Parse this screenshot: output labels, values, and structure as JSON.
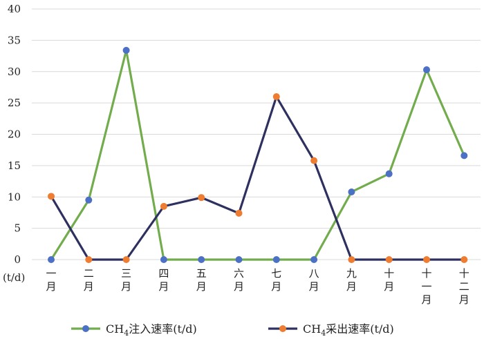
{
  "chart_data": {
    "type": "line",
    "categories": [
      "一\n月",
      "二\n月",
      "三\n月",
      "四\n月",
      "五\n月",
      "六\n月",
      "七\n月",
      "八\n月",
      "九\n月",
      "十\n月",
      "十\n一\n月",
      "十\n二\n月"
    ],
    "series": [
      {
        "name": "CH4注入速率(t/d)",
        "values": [
          0,
          9.5,
          33.4,
          0,
          0,
          0,
          0,
          0,
          10.8,
          13.7,
          30.3,
          16.6
        ],
        "line_color": "#72AC4D",
        "marker_color": "#4C70C5",
        "marker_colors": [
          "#4C70C5",
          "#4C70C5",
          "#4C70C5",
          "#4C70C5",
          "#4C70C5",
          "#4C70C5",
          "#4C70C5",
          "#4C70C5",
          "#4C70C5",
          "#4C70C5",
          "#4C70C5",
          "#4C70C5"
        ]
      },
      {
        "name": "CH4采出速率(t/d)",
        "values": [
          10.1,
          0,
          0,
          8.5,
          9.9,
          7.4,
          26,
          15.8,
          0,
          0,
          0,
          0
        ],
        "line_color": "#2E3060",
        "marker_color": "#EE7D31",
        "marker_colors": [
          "#EE7D31",
          "#EE7D31",
          "#EE7D31",
          "#EE7D31",
          "#EE7D31",
          "#EE7D31",
          "#EE7D31",
          "#EE7D31",
          "#EE7D31",
          "#EE7D31",
          "#EE7D31",
          "#EE7D31"
        ]
      }
    ],
    "ylim": [
      0,
      40
    ],
    "yticks": [
      "0",
      "5",
      "10",
      "15",
      "20",
      "25",
      "30",
      "35",
      "40"
    ],
    "ylabel": "(t/d)",
    "grid": true,
    "legend_position": "bottom",
    "legend": [
      {
        "prefix": "CH",
        "sub": "4",
        "suffix": "注入速率(t/d)"
      },
      {
        "prefix": "CH",
        "sub": "4",
        "suffix": "采出速率(t/d)"
      }
    ],
    "grid_color": "#D9D9D9"
  }
}
